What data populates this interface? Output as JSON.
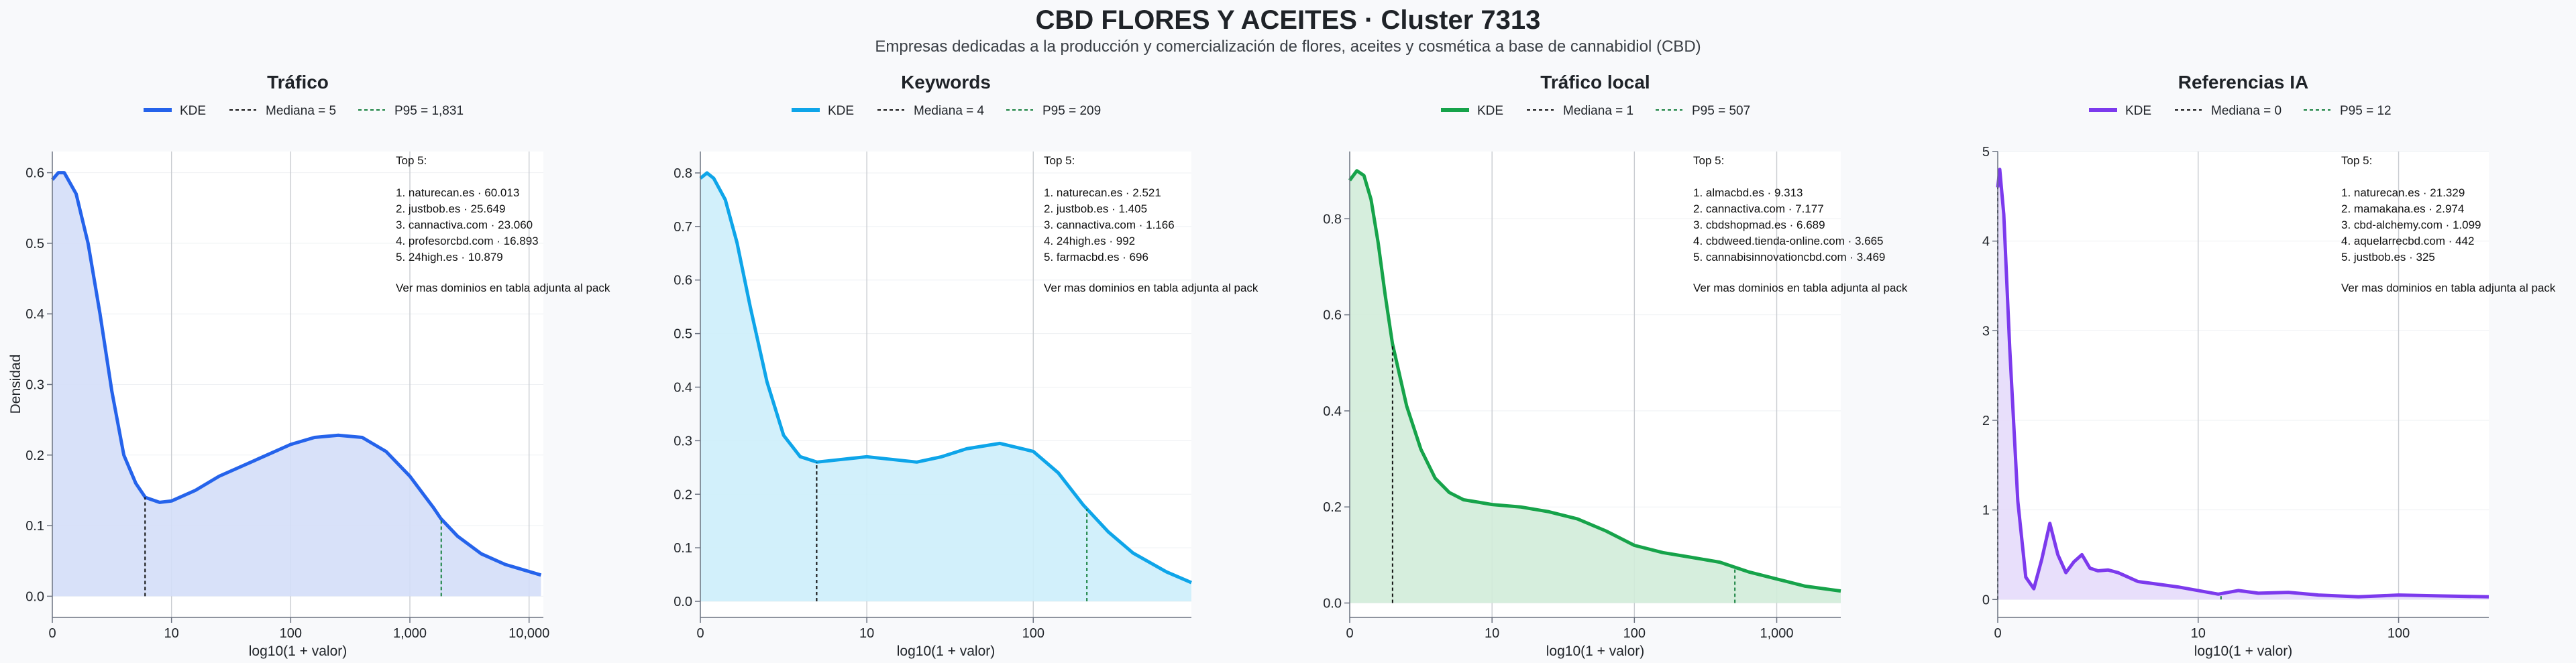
{
  "title": "CBD FLORES Y ACEITES · Cluster 7313",
  "subtitle": "Empresas dedicadas a la producción y comercialización de flores, aceites y cosmética a base de cannabidiol (CBD)",
  "y_axis_label": "Densidad",
  "x_axis_label": "log10(1 + valor)",
  "note_header": "Top 5:",
  "note_footer": "Ver mas dominios en tabla adjunta al pack",
  "chart_data": [
    {
      "type": "area",
      "title": "Tráfico",
      "color": "#2563eb",
      "fill": "#d4def8",
      "legend": [
        "KDE",
        "Mediana = 5",
        "P95 = 1,831"
      ],
      "median_x": 0.778,
      "p95_x": 3.263,
      "xlim": [
        0,
        4.12
      ],
      "ylim": [
        -0.03,
        0.63
      ],
      "x_ticks": [
        {
          "v": 0,
          "label": "0"
        },
        {
          "v": 1,
          "label": "10"
        },
        {
          "v": 2,
          "label": "100"
        },
        {
          "v": 3,
          "label": "1,000"
        },
        {
          "v": 4,
          "label": "10,000"
        }
      ],
      "y_ticks": [
        {
          "v": 0,
          "label": "0.0"
        },
        {
          "v": 0.1,
          "label": "0.1"
        },
        {
          "v": 0.2,
          "label": "0.2"
        },
        {
          "v": 0.3,
          "label": "0.3"
        },
        {
          "v": 0.4,
          "label": "0.4"
        },
        {
          "v": 0.5,
          "label": "0.5"
        },
        {
          "v": 0.6,
          "label": "0.6"
        }
      ],
      "x": [
        0,
        0.05,
        0.1,
        0.2,
        0.3,
        0.4,
        0.5,
        0.6,
        0.7,
        0.78,
        0.9,
        1.0,
        1.2,
        1.4,
        1.6,
        1.8,
        2.0,
        2.2,
        2.4,
        2.6,
        2.8,
        3.0,
        3.2,
        3.26,
        3.4,
        3.6,
        3.8,
        4.1
      ],
      "y": [
        0.59,
        0.6,
        0.6,
        0.57,
        0.5,
        0.4,
        0.29,
        0.2,
        0.16,
        0.14,
        0.133,
        0.135,
        0.15,
        0.17,
        0.185,
        0.2,
        0.215,
        0.225,
        0.228,
        0.225,
        0.205,
        0.17,
        0.125,
        0.11,
        0.085,
        0.06,
        0.045,
        0.03
      ],
      "top5": [
        "1. naturecan.es · 60.013",
        "2. justbob.es · 25.649",
        "3. cannactiva.com · 23.060",
        "4. profesorcbd.com · 16.893",
        "5. 24high.es · 10.879"
      ]
    },
    {
      "type": "area",
      "title": "Keywords",
      "color": "#0ea5e9",
      "fill": "#cdeefb",
      "legend": [
        "KDE",
        "Mediana = 4",
        "P95 = 209"
      ],
      "median_x": 0.699,
      "p95_x": 2.322,
      "xlim": [
        0,
        2.95
      ],
      "ylim": [
        -0.03,
        0.84
      ],
      "x_ticks": [
        {
          "v": 0,
          "label": "0"
        },
        {
          "v": 1,
          "label": "10"
        },
        {
          "v": 2,
          "label": "100"
        }
      ],
      "y_ticks": [
        {
          "v": 0,
          "label": "0.0"
        },
        {
          "v": 0.1,
          "label": "0.1"
        },
        {
          "v": 0.2,
          "label": "0.2"
        },
        {
          "v": 0.3,
          "label": "0.3"
        },
        {
          "v": 0.4,
          "label": "0.4"
        },
        {
          "v": 0.5,
          "label": "0.5"
        },
        {
          "v": 0.6,
          "label": "0.6"
        },
        {
          "v": 0.7,
          "label": "0.7"
        },
        {
          "v": 0.8,
          "label": "0.8"
        }
      ],
      "x": [
        0,
        0.04,
        0.08,
        0.15,
        0.22,
        0.3,
        0.4,
        0.5,
        0.6,
        0.7,
        0.85,
        1.0,
        1.15,
        1.3,
        1.45,
        1.6,
        1.8,
        2.0,
        2.15,
        2.3,
        2.45,
        2.6,
        2.8,
        2.95
      ],
      "y": [
        0.79,
        0.8,
        0.79,
        0.75,
        0.67,
        0.55,
        0.41,
        0.31,
        0.27,
        0.26,
        0.265,
        0.27,
        0.265,
        0.26,
        0.27,
        0.285,
        0.295,
        0.28,
        0.24,
        0.18,
        0.13,
        0.09,
        0.055,
        0.035
      ],
      "top5": [
        "1. naturecan.es · 2.521",
        "2. justbob.es · 1.405",
        "3. cannactiva.com · 1.166",
        "4. 24high.es · 992",
        "5. farmacbd.es · 696"
      ]
    },
    {
      "type": "area",
      "title": "Tráfico local",
      "color": "#16a34a",
      "fill": "#d2ecd9",
      "legend": [
        "KDE",
        "Mediana = 1",
        "P95 = 507"
      ],
      "median_x": 0.301,
      "p95_x": 2.706,
      "xlim": [
        0,
        3.45
      ],
      "ylim": [
        -0.03,
        0.94
      ],
      "x_ticks": [
        {
          "v": 0,
          "label": "0"
        },
        {
          "v": 1,
          "label": "10"
        },
        {
          "v": 2,
          "label": "100"
        },
        {
          "v": 3,
          "label": "1,000"
        }
      ],
      "y_ticks": [
        {
          "v": 0,
          "label": "0.0"
        },
        {
          "v": 0.2,
          "label": "0.2"
        },
        {
          "v": 0.4,
          "label": "0.4"
        },
        {
          "v": 0.6,
          "label": "0.6"
        },
        {
          "v": 0.8,
          "label": "0.8"
        }
      ],
      "x": [
        0,
        0.05,
        0.1,
        0.15,
        0.2,
        0.25,
        0.3,
        0.4,
        0.5,
        0.6,
        0.7,
        0.8,
        0.9,
        1.0,
        1.2,
        1.4,
        1.6,
        1.8,
        2.0,
        2.2,
        2.4,
        2.6,
        2.8,
        3.0,
        3.2,
        3.45
      ],
      "y": [
        0.88,
        0.9,
        0.89,
        0.84,
        0.75,
        0.64,
        0.54,
        0.41,
        0.32,
        0.26,
        0.23,
        0.215,
        0.21,
        0.205,
        0.2,
        0.19,
        0.175,
        0.15,
        0.12,
        0.105,
        0.095,
        0.085,
        0.065,
        0.05,
        0.035,
        0.025
      ],
      "top5": [
        "1. almacbd.es · 9.313",
        "2. cannactiva.com · 7.177",
        "3. cbdshopmad.es · 6.689",
        "4. cbdweed.tienda-online.com · 3.665",
        "5. cannabisinnovationcbd.com · 3.469"
      ]
    },
    {
      "type": "area",
      "title": "Referencias IA",
      "color": "#7c3aed",
      "fill": "#e6dbfb",
      "legend": [
        "KDE",
        "Mediana = 0",
        "P95 = 12"
      ],
      "median_x": 0,
      "p95_x": 1.114,
      "xlim": [
        0,
        2.45
      ],
      "ylim": [
        -0.2,
        5
      ],
      "x_ticks": [
        {
          "v": 0,
          "label": "0"
        },
        {
          "v": 1,
          "label": "10"
        },
        {
          "v": 2,
          "label": "100"
        }
      ],
      "y_ticks": [
        {
          "v": 0,
          "label": "0"
        },
        {
          "v": 1,
          "label": "1"
        },
        {
          "v": 2,
          "label": "2"
        },
        {
          "v": 3,
          "label": "3"
        },
        {
          "v": 4,
          "label": "4"
        },
        {
          "v": 5,
          "label": "5"
        }
      ],
      "x": [
        0,
        0.01,
        0.03,
        0.06,
        0.1,
        0.14,
        0.18,
        0.22,
        0.26,
        0.3,
        0.34,
        0.38,
        0.42,
        0.46,
        0.5,
        0.55,
        0.6,
        0.7,
        0.8,
        0.9,
        1.0,
        1.1,
        1.2,
        1.3,
        1.45,
        1.6,
        1.8,
        2.0,
        2.2,
        2.45
      ],
      "y": [
        4.6,
        4.8,
        4.3,
        2.8,
        1.1,
        0.25,
        0.12,
        0.45,
        0.85,
        0.5,
        0.3,
        0.42,
        0.5,
        0.35,
        0.32,
        0.33,
        0.3,
        0.2,
        0.17,
        0.14,
        0.1,
        0.06,
        0.1,
        0.07,
        0.08,
        0.05,
        0.03,
        0.05,
        0.04,
        0.03
      ],
      "top5": [
        "1. naturecan.es · 21.329",
        "2. mamakana.es · 2.974",
        "3. cbd-alchemy.com · 1.099",
        "4. aquelarrecbd.com · 442",
        "5. justbob.es · 325"
      ]
    }
  ]
}
